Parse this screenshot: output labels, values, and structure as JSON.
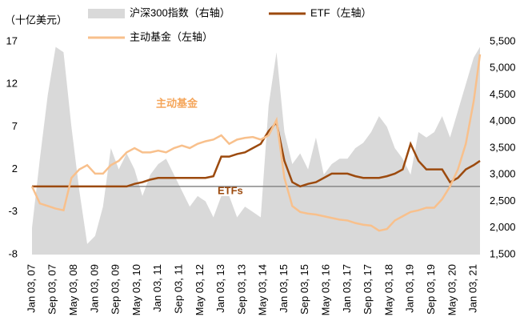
{
  "chart_data": {
    "type": "line",
    "y_label": "（十亿美元）",
    "annotations": [
      "主动基金",
      "ETFs"
    ],
    "x": [
      2007,
      2007.25,
      2007.5,
      2007.75,
      2008,
      2008.25,
      2008.5,
      2008.75,
      2009,
      2009.25,
      2009.5,
      2009.75,
      2010,
      2010.25,
      2010.5,
      2010.75,
      2011,
      2011.25,
      2011.5,
      2011.75,
      2012,
      2012.25,
      2012.5,
      2012.75,
      2013,
      2013.25,
      2013.5,
      2013.75,
      2014,
      2014.25,
      2014.5,
      2014.75,
      2015,
      2015.25,
      2015.5,
      2015.75,
      2016,
      2016.25,
      2016.5,
      2016.75,
      2017,
      2017.25,
      2017.5,
      2017.75,
      2018,
      2018.25,
      2018.5,
      2018.75,
      2019,
      2019.25,
      2019.5,
      2019.75,
      2020,
      2020.25,
      2020.5,
      2020.75,
      2021,
      2021.2
    ],
    "series": [
      {
        "name": "沪深300指数（右轴）",
        "color": "#d9d9d9",
        "axis": "y2",
        "kind": "area",
        "values": [
          2000,
          3300,
          4500,
          5400,
          5300,
          3900,
          2700,
          1700,
          1850,
          2400,
          3500,
          3100,
          3400,
          3100,
          2600,
          3000,
          3200,
          3300,
          3000,
          2700,
          2400,
          2600,
          2500,
          2200,
          2600,
          2600,
          2200,
          2400,
          2300,
          2200,
          4300,
          5300,
          3800,
          3200,
          3400,
          3100,
          3700,
          3000,
          3200,
          3300,
          3300,
          3500,
          3600,
          3800,
          4100,
          3900,
          3500,
          3300,
          3000,
          3800,
          3700,
          3800,
          4100,
          3700,
          4200,
          4700,
          5200,
          5400
        ]
      },
      {
        "name": "ETF（左轴）",
        "color": "#9c4a0e",
        "kind": "line",
        "values": [
          0,
          0,
          0,
          0,
          0,
          0,
          0,
          0,
          0,
          0,
          0,
          0,
          0,
          0.3,
          0.5,
          0.8,
          1,
          1,
          1,
          1,
          1,
          1,
          1,
          1.2,
          3.5,
          3.5,
          3.8,
          4,
          4.5,
          5,
          6.5,
          7.5,
          3,
          0.5,
          0,
          0.3,
          0.5,
          1,
          1.5,
          1.5,
          1.5,
          1.2,
          1,
          1,
          1,
          1.2,
          1.5,
          2,
          5,
          3,
          2,
          2,
          2,
          0.5,
          1,
          2,
          2.5,
          3
        ]
      },
      {
        "name": "主动基金（左轴）",
        "color": "#f8c08c",
        "kind": "line",
        "values": [
          0,
          -2,
          -2.3,
          -2.6,
          -2.8,
          1,
          2,
          2.5,
          1.5,
          1.5,
          2.5,
          3,
          4,
          4.5,
          4,
          4,
          4.2,
          4,
          4.5,
          4.8,
          4.5,
          5,
          5.3,
          5.5,
          6,
          5,
          5.5,
          5.7,
          5.8,
          5.5,
          6,
          7.8,
          1,
          -2.3,
          -3,
          -3.2,
          -3.3,
          -3.5,
          -3.7,
          -3.9,
          -4,
          -4.3,
          -4.5,
          -4.6,
          -5.2,
          -5,
          -4,
          -3.5,
          -3,
          -2.8,
          -2.5,
          -2.5,
          -1.5,
          0,
          2,
          5,
          10,
          15.5
        ]
      }
    ],
    "xlim": [
      2007,
      2021.2
    ],
    "xticks": [
      {
        "value": 2007,
        "label": "Jan 03, 07"
      },
      {
        "value": 2007.6667,
        "label": "Sep 03, 07"
      },
      {
        "value": 2008.3333,
        "label": "May 03, 08"
      },
      {
        "value": 2009,
        "label": "Jan 03, 09"
      },
      {
        "value": 2009.6667,
        "label": "Sep 03, 09"
      },
      {
        "value": 2010.3333,
        "label": "May 03, 10"
      },
      {
        "value": 2011,
        "label": "Jan 03, 11"
      },
      {
        "value": 2011.6667,
        "label": "Sep 03, 11"
      },
      {
        "value": 2012.3333,
        "label": "May 03, 12"
      },
      {
        "value": 2013,
        "label": "Jan 03, 13"
      },
      {
        "value": 2013.6667,
        "label": "Sep 03, 13"
      },
      {
        "value": 2014.3333,
        "label": "May 03, 14"
      },
      {
        "value": 2015,
        "label": "Jan 03, 15"
      },
      {
        "value": 2015.6667,
        "label": "Sep 03, 15"
      },
      {
        "value": 2016.3333,
        "label": "May 03, 16"
      },
      {
        "value": 2017,
        "label": "Jan 03, 17"
      },
      {
        "value": 2017.6667,
        "label": "Sep 03, 17"
      },
      {
        "value": 2018.3333,
        "label": "May 03, 18"
      },
      {
        "value": 2019,
        "label": "Jan 03, 19"
      },
      {
        "value": 2019.6667,
        "label": "Sep 03, 19"
      },
      {
        "value": 2020.3333,
        "label": "May 03, 20"
      },
      {
        "value": 2021,
        "label": "Jan 03, 21"
      }
    ],
    "ylim": [
      -8,
      17
    ],
    "yticks": [
      -8,
      -3,
      2,
      7,
      12,
      17
    ],
    "y2lim": [
      1500,
      5500
    ],
    "y2ticks": [
      {
        "value": 1500,
        "label": "1,500"
      },
      {
        "value": 2000,
        "label": "2,000"
      },
      {
        "value": 2500,
        "label": "2,500"
      },
      {
        "value": 3000,
        "label": "3,000"
      },
      {
        "value": 3500,
        "label": "3,500"
      },
      {
        "value": 4000,
        "label": "4,000"
      },
      {
        "value": 4500,
        "label": "4,500"
      },
      {
        "value": 5000,
        "label": "5,000"
      },
      {
        "value": 5500,
        "label": "5,500"
      }
    ]
  }
}
